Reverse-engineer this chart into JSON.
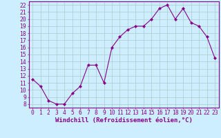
{
  "x": [
    0,
    1,
    2,
    3,
    4,
    5,
    6,
    7,
    8,
    9,
    10,
    11,
    12,
    13,
    14,
    15,
    16,
    17,
    18,
    19,
    20,
    21,
    22,
    23
  ],
  "y": [
    11.5,
    10.5,
    8.5,
    8.0,
    8.0,
    9.5,
    10.5,
    13.5,
    13.5,
    11.0,
    16.0,
    17.5,
    18.5,
    19.0,
    19.0,
    20.0,
    21.5,
    22.0,
    20.0,
    21.5,
    19.5,
    19.0,
    17.5,
    14.5
  ],
  "line_color": "#880088",
  "marker": "D",
  "marker_size": 2.2,
  "bg_color": "#cceeff",
  "grid_color": "#aacccc",
  "xlabel": "Windchill (Refroidissement éolien,°C)",
  "xlim": [
    -0.5,
    23.5
  ],
  "ylim": [
    7.5,
    22.5
  ],
  "yticks": [
    8,
    9,
    10,
    11,
    12,
    13,
    14,
    15,
    16,
    17,
    18,
    19,
    20,
    21,
    22
  ],
  "xticks": [
    0,
    1,
    2,
    3,
    4,
    5,
    6,
    7,
    8,
    9,
    10,
    11,
    12,
    13,
    14,
    15,
    16,
    17,
    18,
    19,
    20,
    21,
    22,
    23
  ],
  "tick_color": "#880088",
  "label_color": "#880088",
  "axis_spine_color": "#880088",
  "font_size_xlabel": 6.5,
  "font_size_ticks": 5.8
}
